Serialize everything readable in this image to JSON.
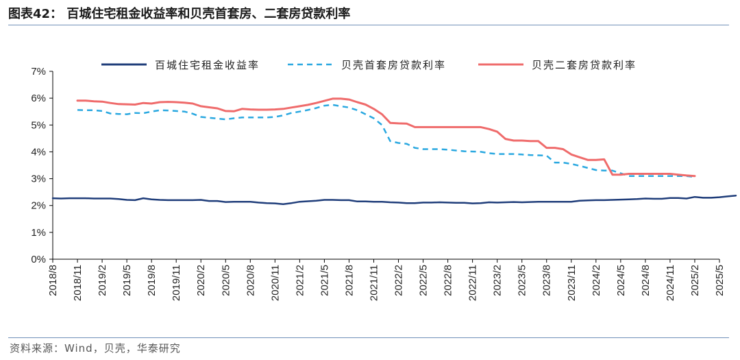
{
  "header": {
    "title": "图表42：  百城住宅租金收益率和贝壳首套房、二套房贷款利率"
  },
  "footer": {
    "source": "资料来源：Wind，贝壳，华泰研究"
  },
  "chart_data": {
    "type": "line",
    "title": "",
    "xlabel": "",
    "ylabel": "",
    "ylim": [
      0,
      7
    ],
    "y_ticks": [
      "0%",
      "1%",
      "2%",
      "3%",
      "4%",
      "5%",
      "6%",
      "7%"
    ],
    "x_tick_labels": [
      "2018/8",
      "2018/11",
      "2019/2",
      "2019/5",
      "2019/8",
      "2019/11",
      "2020/2",
      "2020/5",
      "2020/8",
      "2020/11",
      "2021/2",
      "2021/5",
      "2021/8",
      "2021/11",
      "2022/2",
      "2022/5",
      "2022/8",
      "2022/11",
      "2023/2",
      "2023/5",
      "2023/8",
      "2023/11",
      "2024/2",
      "2024/5",
      "2024/8",
      "2024/11",
      "2025/2",
      "2025/5"
    ],
    "legend_position": "top",
    "grid": false,
    "series": [
      {
        "name": "百城住宅租金收益率",
        "color": "#1f3d7a",
        "style": "solid",
        "start": "2018/8",
        "values": [
          2.27,
          2.26,
          2.27,
          2.27,
          2.27,
          2.26,
          2.26,
          2.26,
          2.24,
          2.21,
          2.2,
          2.27,
          2.23,
          2.21,
          2.2,
          2.2,
          2.2,
          2.2,
          2.21,
          2.17,
          2.17,
          2.13,
          2.14,
          2.14,
          2.14,
          2.11,
          2.09,
          2.08,
          2.05,
          2.09,
          2.14,
          2.16,
          2.18,
          2.21,
          2.21,
          2.2,
          2.2,
          2.15,
          2.15,
          2.14,
          2.14,
          2.12,
          2.11,
          2.09,
          2.09,
          2.11,
          2.11,
          2.12,
          2.11,
          2.1,
          2.1,
          2.08,
          2.09,
          2.12,
          2.11,
          2.12,
          2.13,
          2.12,
          2.13,
          2.14,
          2.14,
          2.14,
          2.14,
          2.14,
          2.18,
          2.19,
          2.2,
          2.2,
          2.21,
          2.22,
          2.23,
          2.24,
          2.26,
          2.25,
          2.25,
          2.28,
          2.28,
          2.26,
          2.32,
          2.29,
          2.29,
          2.31,
          2.34,
          2.37
        ]
      },
      {
        "name": "贝壳首套房贷款利率",
        "color": "#2aa8e0",
        "style": "dashed",
        "start": "2018/11",
        "values": [
          5.56,
          5.55,
          5.55,
          5.52,
          5.43,
          5.41,
          5.4,
          5.45,
          5.44,
          5.5,
          5.55,
          5.54,
          5.52,
          5.5,
          5.42,
          5.3,
          5.27,
          5.24,
          5.21,
          5.25,
          5.28,
          5.28,
          5.28,
          5.28,
          5.3,
          5.36,
          5.45,
          5.5,
          5.56,
          5.63,
          5.72,
          5.75,
          5.7,
          5.65,
          5.55,
          5.4,
          5.25,
          5.0,
          4.4,
          4.33,
          4.3,
          4.15,
          4.1,
          4.1,
          4.1,
          4.08,
          4.05,
          4.02,
          4.01,
          4.0,
          3.95,
          3.92,
          3.92,
          3.92,
          3.9,
          3.88,
          3.87,
          3.86,
          3.6,
          3.6,
          3.55,
          3.48,
          3.4,
          3.32,
          3.3,
          3.3,
          3.2,
          3.1,
          3.1,
          3.1,
          3.1,
          3.1,
          3.1,
          3.1,
          3.1,
          3.06
        ]
      },
      {
        "name": "贝壳二套房贷款利率",
        "color": "#ef6b6b",
        "style": "solid",
        "start": "2018/11",
        "values": [
          5.91,
          5.91,
          5.88,
          5.87,
          5.82,
          5.78,
          5.77,
          5.76,
          5.82,
          5.8,
          5.85,
          5.86,
          5.85,
          5.83,
          5.8,
          5.7,
          5.66,
          5.62,
          5.52,
          5.51,
          5.6,
          5.58,
          5.57,
          5.57,
          5.58,
          5.6,
          5.65,
          5.7,
          5.75,
          5.82,
          5.9,
          5.98,
          5.98,
          5.95,
          5.85,
          5.76,
          5.6,
          5.4,
          5.08,
          5.06,
          5.05,
          4.92,
          4.92,
          4.92,
          4.92,
          4.92,
          4.92,
          4.92,
          4.92,
          4.92,
          4.85,
          4.75,
          4.48,
          4.42,
          4.42,
          4.4,
          4.4,
          4.15,
          4.15,
          4.1,
          3.9,
          3.8,
          3.7,
          3.7,
          3.72,
          3.15,
          3.15,
          3.18,
          3.18,
          3.18,
          3.18,
          3.18,
          3.18,
          3.15,
          3.12,
          3.1
        ]
      }
    ]
  }
}
